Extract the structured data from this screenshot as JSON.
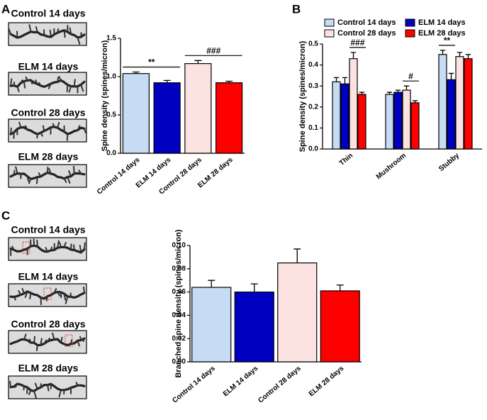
{
  "panel_labels": [
    "A",
    "B",
    "C"
  ],
  "images": {
    "A": [
      "Control 14 days",
      "ELM 14 days",
      "Control 28 days",
      "ELM 28 days"
    ],
    "C": [
      "Control 14 days",
      "ELM 14 days",
      "Control 28 days",
      "ELM 28 days"
    ]
  },
  "chart_data": [
    {
      "type": "bar",
      "ylabel": "Spine density (spines/micron)",
      "categories": [
        "Control 14 days",
        "ELM 14 days",
        "Control 28 days",
        "ELM 28 days"
      ],
      "values": [
        1.04,
        0.92,
        1.17,
        0.92
      ],
      "errors": [
        0.02,
        0.03,
        0.04,
        0.02
      ],
      "colors": [
        "#c6dcf4",
        "#0000c0",
        "#fde2e2",
        "#ff0000"
      ],
      "ylim": [
        0,
        1.5
      ],
      "yticks": [
        {
          "value": 0,
          "label": "0.0"
        },
        0.5,
        {
          "value": 1,
          "label": "1.0"
        },
        1.5
      ],
      "annotations": [
        "**",
        "###"
      ]
    },
    {
      "type": "grouped_bar",
      "ylabel": "Spine density (spines/micron)",
      "categories": [
        "Thin",
        "Mushroom",
        "Stubby"
      ],
      "series": [
        {
          "name": "Control 14 days",
          "color": "#c6dcf4",
          "values": [
            0.32,
            0.26,
            0.45
          ],
          "errors": [
            0.02,
            0.01,
            0.02
          ]
        },
        {
          "name": "ELM 14 days",
          "color": "#0000c0",
          "values": [
            0.31,
            0.27,
            0.33
          ],
          "errors": [
            0.03,
            0.01,
            0.03
          ]
        },
        {
          "name": "Control 28 days",
          "color": "#fde2e2",
          "values": [
            0.43,
            0.28,
            0.44
          ],
          "errors": [
            0.03,
            0.02,
            0.02
          ]
        },
        {
          "name": "ELM 28 days",
          "color": "#ff0000",
          "values": [
            0.26,
            0.22,
            0.43
          ],
          "errors": [
            0.01,
            0.01,
            0.02
          ]
        }
      ],
      "ylim": [
        0,
        0.5
      ],
      "yticks": [
        {
          "value": 0,
          "label": "0.0"
        },
        0.1,
        0.2,
        0.3,
        0.4,
        0.5
      ],
      "legend": "top",
      "annotations": [
        "###",
        "#",
        "**"
      ]
    },
    {
      "type": "bar",
      "ylabel": "Branched spine density (spines/micron)",
      "categories": [
        "Control 14 days",
        "ELM 14 days",
        "Control 28 days",
        "ELM 28 days"
      ],
      "values": [
        0.064,
        0.06,
        0.085,
        0.061
      ],
      "errors": [
        0.006,
        0.007,
        0.012,
        0.005
      ],
      "colors": [
        "#c6dcf4",
        "#0000c0",
        "#fde2e2",
        "#ff0000"
      ],
      "ylim": [
        0,
        0.1
      ],
      "yticks": [
        {
          "value": 0,
          "label": "0.00"
        },
        0.02,
        0.04,
        0.06,
        0.08,
        {
          "value": 0.1,
          "label": "0.10"
        }
      ]
    }
  ]
}
